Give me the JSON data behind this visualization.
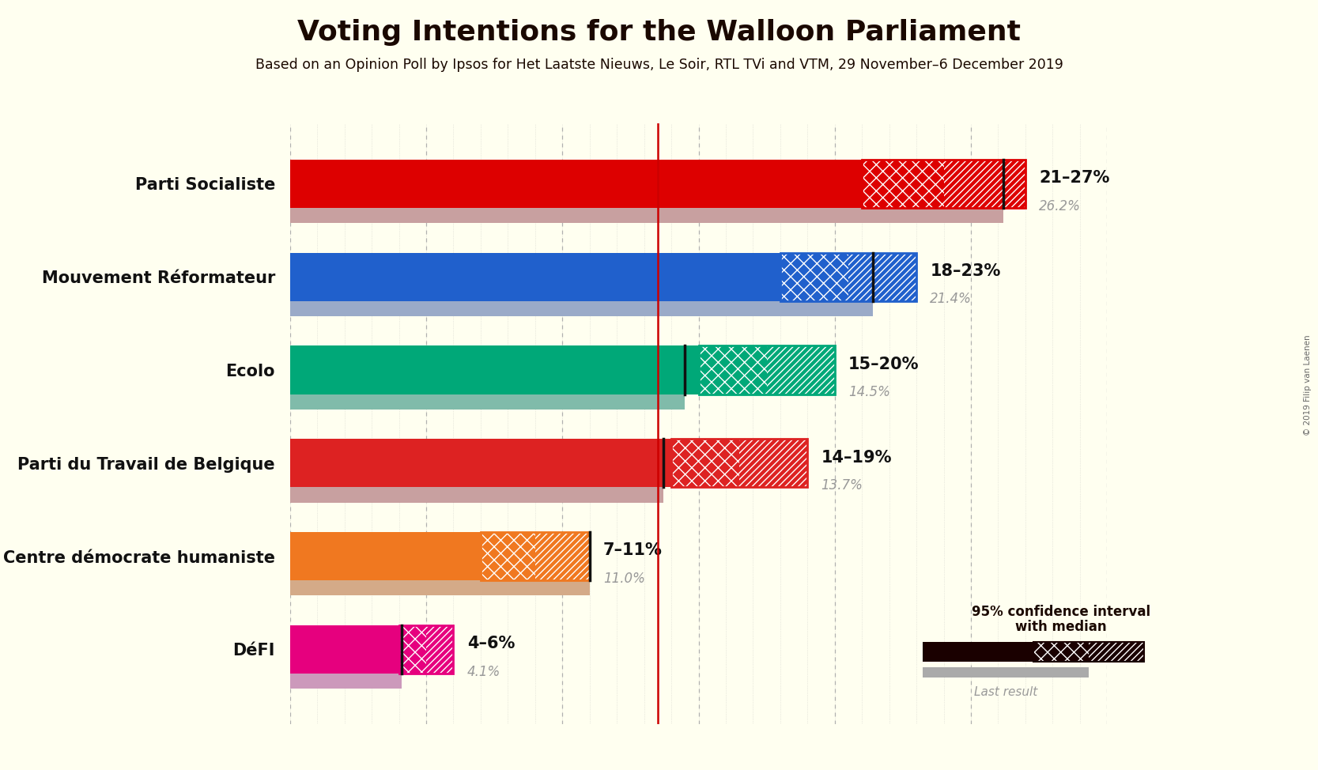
{
  "title": "Voting Intentions for the Walloon Parliament",
  "subtitle": "Based on an Opinion Poll by Ipsos for Het Laatste Nieuws, Le Soir, RTL TVi and VTM, 29 November–6 December 2019",
  "background_color": "#FFFFF0",
  "parties": [
    {
      "name": "Parti Socialiste",
      "ci_low": 21,
      "ci_high": 27,
      "median": 26.2,
      "last": 26.2,
      "color": "#DD0000",
      "last_color": "#C8A0A0"
    },
    {
      "name": "Mouvement Réformateur",
      "ci_low": 18,
      "ci_high": 23,
      "median": 21.4,
      "last": 21.4,
      "color": "#2060CC",
      "last_color": "#9AAAC8"
    },
    {
      "name": "Ecolo",
      "ci_low": 15,
      "ci_high": 20,
      "median": 14.5,
      "last": 14.5,
      "color": "#00A878",
      "last_color": "#80BBAA"
    },
    {
      "name": "Parti du Travail de Belgique",
      "ci_low": 14,
      "ci_high": 19,
      "median": 13.7,
      "last": 13.7,
      "color": "#DD2222",
      "last_color": "#C8A0A0"
    },
    {
      "name": "Centre démocrate humaniste",
      "ci_low": 7,
      "ci_high": 11,
      "median": 11.0,
      "last": 11.0,
      "color": "#F07820",
      "last_color": "#D4AA88"
    },
    {
      "name": "DéFI",
      "ci_low": 4,
      "ci_high": 6,
      "median": 4.1,
      "last": 4.1,
      "color": "#E6007E",
      "last_color": "#CC99BB"
    }
  ],
  "median_line_color": "#111111",
  "range_label_color": "#111111",
  "last_label_color": "#999999",
  "xmax": 30,
  "grid_color": "#AAAAAA",
  "red_line_x": 13.5,
  "copyright": "© 2019 Filip van Laenen",
  "legend_box_color": "#1A0000",
  "legend_last_color": "#AAAAAA"
}
